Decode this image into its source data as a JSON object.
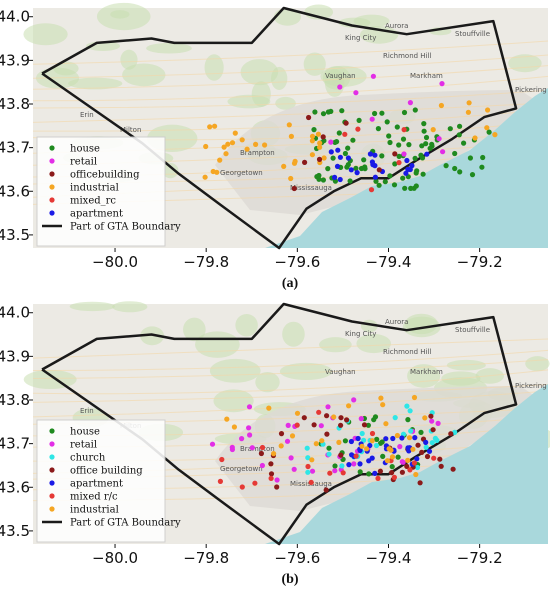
{
  "colors": {
    "water": "#a9d8dc",
    "land": "#eceae4",
    "urban": "#dddad5",
    "green": "#c9dfb0",
    "boundary": "#1a1a1a",
    "house": "#1f8a1f",
    "retail": "#e22ee6",
    "church": "#2ee6e6",
    "officebuilding": "#8b1a1a",
    "industrial": "#f5a623",
    "mixed": "#e53935",
    "apartment": "#1a1ae6"
  },
  "axes": {
    "x_ticks": [
      "−80.0",
      "−79.8",
      "−79.6",
      "−79.4",
      "−79.2"
    ],
    "y_ticks": [
      "44.0",
      "43.9",
      "43.8",
      "43.7",
      "43.6",
      "43.5"
    ],
    "xlim": [
      -80.18,
      -79.05
    ],
    "ylim": [
      43.47,
      44.02
    ]
  },
  "places": [
    "King City",
    "Aurora",
    "Stouffville",
    "Richmond Hill",
    "Markham",
    "Vaughan",
    "Brampton",
    "Mississauga",
    "Pickering",
    "Georgetown",
    "Milton",
    "Erin"
  ],
  "panels": [
    {
      "id": "a",
      "caption": "(a)",
      "legend": [
        {
          "label": "house",
          "color_key": "house",
          "kind": "dot"
        },
        {
          "label": "retail",
          "color_key": "retail",
          "kind": "dot"
        },
        {
          "label": "officebuilding",
          "color_key": "officebuilding",
          "kind": "dot"
        },
        {
          "label": "industrial",
          "color_key": "industrial",
          "kind": "dot"
        },
        {
          "label": "mixed_rc",
          "color_key": "mixed",
          "kind": "dot"
        },
        {
          "label": "apartment",
          "color_key": "apartment",
          "kind": "dot"
        },
        {
          "label": "Part of GTA Boundary",
          "color_key": "boundary",
          "kind": "line"
        }
      ]
    },
    {
      "id": "b",
      "caption": "(b)",
      "legend": [
        {
          "label": "house",
          "color_key": "house",
          "kind": "dot"
        },
        {
          "label": "retail",
          "color_key": "retail",
          "kind": "dot"
        },
        {
          "label": "church",
          "color_key": "church",
          "kind": "dot"
        },
        {
          "label": "office building",
          "color_key": "officebuilding",
          "kind": "dot"
        },
        {
          "label": "apartment",
          "color_key": "apartment",
          "kind": "dot"
        },
        {
          "label": "mixed r/c",
          "color_key": "mixed",
          "kind": "dot"
        },
        {
          "label": "industrial",
          "color_key": "industrial",
          "kind": "dot"
        },
        {
          "label": "Part of GTA Boundary",
          "color_key": "boundary",
          "kind": "line"
        }
      ]
    }
  ],
  "boundary_lonlat": [
    [
      -80.16,
      43.87
    ],
    [
      -80.04,
      43.94
    ],
    [
      -79.92,
      43.95
    ],
    [
      -79.87,
      43.94
    ],
    [
      -79.7,
      43.94
    ],
    [
      -79.63,
      44.02
    ],
    [
      -79.48,
      43.98
    ],
    [
      -79.36,
      43.96
    ],
    [
      -79.17,
      43.99
    ],
    [
      -79.14,
      43.87
    ],
    [
      -79.12,
      43.79
    ],
    [
      -79.19,
      43.77
    ],
    [
      -79.26,
      43.72
    ],
    [
      -79.34,
      43.67
    ],
    [
      -79.4,
      43.63
    ],
    [
      -79.46,
      43.63
    ],
    [
      -79.52,
      43.6
    ],
    [
      -79.58,
      43.56
    ],
    [
      -79.64,
      43.47
    ],
    [
      -79.77,
      43.57
    ],
    [
      -79.86,
      43.64
    ],
    [
      -79.94,
      43.71
    ],
    [
      -80.05,
      43.79
    ],
    [
      -80.16,
      43.87
    ]
  ]
}
